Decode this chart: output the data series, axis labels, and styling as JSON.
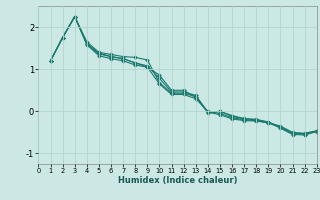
{
  "xlabel": "Humidex (Indice chaleur)",
  "bg_color": "#cbe8e4",
  "grid_color": "#b0d4cf",
  "line_color": "#1a7a6e",
  "xlim": [
    0,
    23
  ],
  "ylim": [
    -1.25,
    2.5
  ],
  "xticks": [
    0,
    1,
    2,
    3,
    4,
    5,
    6,
    7,
    8,
    9,
    10,
    11,
    12,
    13,
    14,
    15,
    16,
    17,
    18,
    19,
    20,
    21,
    22,
    23
  ],
  "yticks": [
    -1,
    0,
    1,
    2
  ],
  "series": [
    [
      1.2,
      1.75,
      2.25,
      1.65,
      1.4,
      1.35,
      1.3,
      1.28,
      1.22,
      0.68,
      0.43,
      0.43,
      0.35,
      -0.02,
      -0.08,
      -0.18,
      -0.22,
      -0.23,
      -0.27,
      -0.35,
      -0.5,
      -0.52,
      -0.46
    ],
    [
      1.2,
      1.75,
      2.25,
      1.6,
      1.38,
      1.3,
      1.25,
      1.15,
      1.05,
      0.65,
      0.4,
      0.4,
      0.3,
      0.0,
      -0.05,
      -0.15,
      -0.2,
      -0.22,
      -0.28,
      -0.38,
      -0.52,
      -0.55,
      -0.47
    ],
    [
      1.2,
      1.75,
      2.25,
      1.6,
      1.36,
      1.3,
      1.25,
      1.15,
      1.08,
      0.78,
      0.46,
      0.46,
      0.38,
      -0.02,
      0.0,
      -0.12,
      -0.18,
      -0.2,
      -0.25,
      -0.38,
      -0.52,
      -0.53,
      -0.47
    ],
    [
      1.2,
      1.75,
      2.25,
      1.58,
      1.32,
      1.25,
      1.2,
      1.1,
      1.05,
      0.86,
      0.5,
      0.5,
      0.33,
      -0.03,
      0.0,
      -0.1,
      -0.17,
      -0.19,
      -0.26,
      -0.4,
      -0.55,
      -0.56,
      -0.48
    ]
  ],
  "x_start": 1,
  "marker": "D",
  "markersize": 2.0,
  "linewidth": 0.8
}
